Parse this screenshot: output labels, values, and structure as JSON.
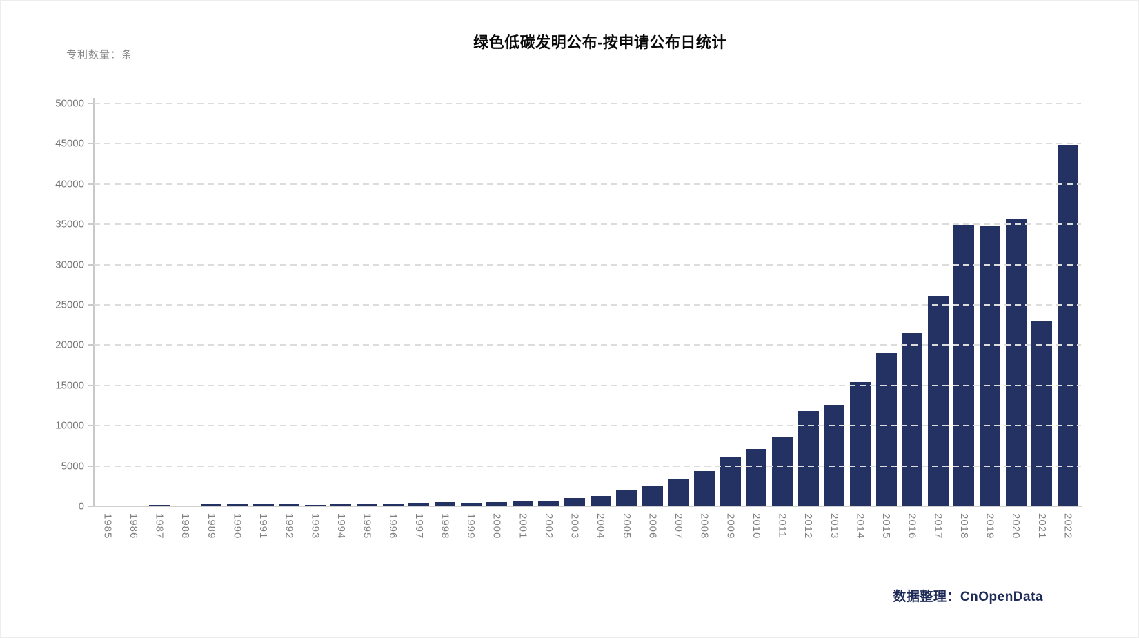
{
  "page": {
    "title": "绿色低碳发明公布-按申请公布日统计",
    "y_unit_label": "专利数量：条",
    "footer": "数据整理：CnOpenData"
  },
  "colors": {
    "bar": "#243263",
    "title_text": "#0a0a0a",
    "footer_text": "#1e2b58",
    "axis_line": "#c9c9c9",
    "gridline": "#dcdcdc",
    "tick_label": "#757575",
    "unit_label": "#8c8c8c"
  },
  "chart_data": {
    "type": "bar",
    "title": "绿色低碳发明公布-按申请公布日统计",
    "xlabel": "",
    "ylabel": "专利数量：条",
    "ylim": [
      0,
      50000
    ],
    "yticks": [
      0,
      5000,
      10000,
      15000,
      20000,
      25000,
      30000,
      35000,
      40000,
      45000,
      50000
    ],
    "grid": "horizontal-dashed",
    "legend_position": "none",
    "bar_color": "#243263",
    "source_note": "数据整理：CnOpenData",
    "categories": [
      "1985",
      "1986",
      "1987",
      "1988",
      "1989",
      "1990",
      "1991",
      "1992",
      "1993",
      "1994",
      "1995",
      "1996",
      "1997",
      "1998",
      "1999",
      "2000",
      "2001",
      "2002",
      "2003",
      "2004",
      "2005",
      "2006",
      "2007",
      "2008",
      "2009",
      "2010",
      "2011",
      "2012",
      "2013",
      "2014",
      "2015",
      "2016",
      "2017",
      "2018",
      "2019",
      "2020",
      "2021",
      "2022"
    ],
    "values": [
      2,
      8,
      190,
      30,
      230,
      260,
      235,
      235,
      210,
      340,
      350,
      360,
      420,
      480,
      430,
      530,
      610,
      690,
      1050,
      1260,
      2050,
      2450,
      3350,
      4400,
      6100,
      7100,
      8550,
      11850,
      12550,
      15400,
      19050,
      21450,
      26100,
      34950,
      34800,
      35650,
      22950,
      44900
    ]
  }
}
